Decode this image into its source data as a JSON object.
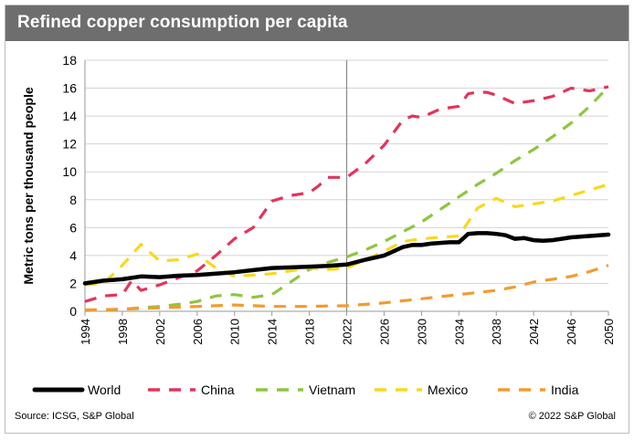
{
  "header": {
    "title": "Refined copper consumption per capita"
  },
  "footer": {
    "source": "Source: ICSG, S&P Global",
    "copyright": "© 2022 S&P Global"
  },
  "chart_data": {
    "type": "line",
    "title": "Refined copper consumption per capita",
    "xlabel": "",
    "ylabel": "Metric tons per thousand people",
    "xlim": [
      1994,
      2050
    ],
    "ylim": [
      0,
      18
    ],
    "yticks": [
      0,
      2,
      4,
      6,
      8,
      10,
      12,
      14,
      16,
      18
    ],
    "xticks": [
      1994,
      1998,
      2002,
      2006,
      2010,
      2014,
      2018,
      2022,
      2026,
      2030,
      2034,
      2038,
      2042,
      2046,
      2050
    ],
    "ytick_labels": [
      "0",
      "2",
      "4",
      "6",
      "8",
      "10",
      "12",
      "14",
      "16",
      "18"
    ],
    "xtick_labels": [
      "1994",
      "1998",
      "2002",
      "2006",
      "2010",
      "2014",
      "2018",
      "2022",
      "2026",
      "2030",
      "2034",
      "2038",
      "2042",
      "2046",
      "2050"
    ],
    "forecast_divider_x": 2022,
    "grid": "horizontal",
    "legend_position": "bottom",
    "series": [
      {
        "name": "World",
        "color": "#000000",
        "style": "solid",
        "x": [
          1994,
          1996,
          1998,
          2000,
          2002,
          2004,
          2006,
          2008,
          2010,
          2012,
          2014,
          2016,
          2018,
          2020,
          2022,
          2024,
          2026,
          2027,
          2028,
          2029,
          2030,
          2031,
          2032,
          2033,
          2034,
          2035,
          2036,
          2037,
          2038,
          2039,
          2040,
          2041,
          2042,
          2043,
          2044,
          2045,
          2046,
          2048,
          2050
        ],
        "y": [
          2.0,
          2.2,
          2.3,
          2.5,
          2.45,
          2.55,
          2.6,
          2.7,
          2.8,
          2.95,
          3.1,
          3.15,
          3.2,
          3.25,
          3.35,
          3.7,
          4.0,
          4.3,
          4.6,
          4.75,
          4.75,
          4.85,
          4.9,
          4.95,
          4.95,
          5.55,
          5.6,
          5.6,
          5.55,
          5.45,
          5.2,
          5.25,
          5.1,
          5.05,
          5.1,
          5.2,
          5.3,
          5.4,
          5.5
        ]
      },
      {
        "name": "China",
        "color": "#e3345a",
        "style": "dashed",
        "x": [
          1994,
          1996,
          1998,
          1999,
          2000,
          2002,
          2004,
          2006,
          2008,
          2010,
          2012,
          2014,
          2016,
          2018,
          2019,
          2020,
          2022,
          2024,
          2026,
          2028,
          2029,
          2030,
          2032,
          2034,
          2035,
          2036,
          2037,
          2038,
          2040,
          2042,
          2044,
          2046,
          2048,
          2050
        ],
        "y": [
          0.7,
          1.1,
          1.2,
          2.2,
          1.5,
          1.9,
          2.4,
          2.9,
          4.0,
          5.2,
          6.0,
          7.9,
          8.3,
          8.5,
          9.0,
          9.6,
          9.6,
          10.6,
          11.9,
          13.7,
          14.0,
          13.9,
          14.5,
          14.7,
          15.6,
          15.7,
          15.7,
          15.5,
          14.9,
          15.1,
          15.4,
          16.0,
          15.8,
          16.1
        ]
      },
      {
        "name": "Vietnam",
        "color": "#8dc63f",
        "style": "dashed",
        "x": [
          1994,
          1996,
          1998,
          2000,
          2002,
          2004,
          2006,
          2008,
          2010,
          2012,
          2014,
          2016,
          2018,
          2020,
          2022,
          2024,
          2026,
          2028,
          2030,
          2032,
          2034,
          2036,
          2038,
          2040,
          2042,
          2044,
          2046,
          2048,
          2050
        ],
        "y": [
          0.05,
          0.1,
          0.15,
          0.25,
          0.35,
          0.5,
          0.7,
          1.1,
          1.2,
          1.0,
          1.2,
          2.1,
          3.0,
          3.5,
          3.9,
          4.4,
          5.0,
          5.7,
          6.4,
          7.3,
          8.2,
          9.1,
          9.9,
          10.8,
          11.6,
          12.5,
          13.5,
          14.7,
          16.1
        ]
      },
      {
        "name": "Mexico",
        "color": "#f9d81b",
        "style": "dashed",
        "x": [
          1994,
          1996,
          1998,
          2000,
          2002,
          2004,
          2006,
          2008,
          2010,
          2012,
          2014,
          2016,
          2018,
          2020,
          2022,
          2024,
          2026,
          2028,
          2030,
          2032,
          2034,
          2036,
          2038,
          2040,
          2042,
          2044,
          2046,
          2048,
          2050
        ],
        "y": [
          1.9,
          2.0,
          3.3,
          4.8,
          3.6,
          3.7,
          4.1,
          3.1,
          2.5,
          2.6,
          2.7,
          2.9,
          3.1,
          3.0,
          3.1,
          3.7,
          4.3,
          5.0,
          5.2,
          5.3,
          5.4,
          7.4,
          8.1,
          7.5,
          7.7,
          7.9,
          8.3,
          8.7,
          9.1
        ]
      },
      {
        "name": "India",
        "color": "#f39b2e",
        "style": "dashed",
        "x": [
          1994,
          1996,
          1998,
          2000,
          2002,
          2004,
          2006,
          2008,
          2010,
          2012,
          2014,
          2016,
          2018,
          2020,
          2022,
          2024,
          2026,
          2028,
          2030,
          2032,
          2034,
          2036,
          2038,
          2040,
          2042,
          2044,
          2046,
          2048,
          2050
        ],
        "y": [
          0.1,
          0.12,
          0.15,
          0.2,
          0.25,
          0.3,
          0.35,
          0.4,
          0.45,
          0.4,
          0.35,
          0.35,
          0.35,
          0.38,
          0.4,
          0.5,
          0.6,
          0.75,
          0.9,
          1.05,
          1.2,
          1.35,
          1.5,
          1.75,
          2.1,
          2.3,
          2.5,
          2.85,
          3.3
        ]
      }
    ]
  }
}
